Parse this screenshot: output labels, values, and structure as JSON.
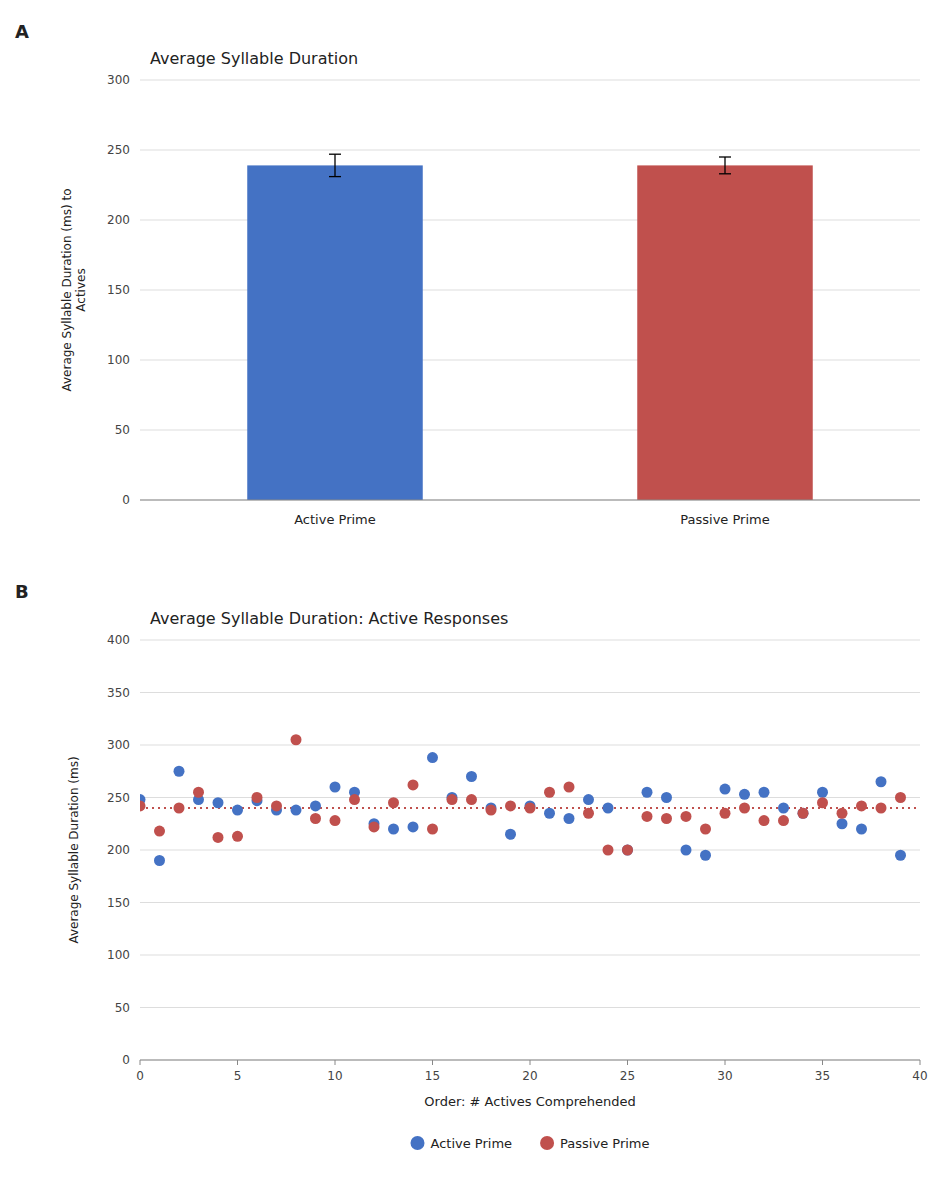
{
  "chart_data": [
    {
      "type": "bar",
      "panel_label": "A",
      "title": "Average Syllable Duration",
      "categories": [
        "Active Prime",
        "Passive Prime"
      ],
      "values": [
        239,
        239
      ],
      "errors": [
        8,
        6
      ],
      "colors": [
        "#4472C4",
        "#C0504D"
      ],
      "y_label": "Average Syllable Duration (ms) to\nActives",
      "ylim": [
        0,
        300
      ],
      "yticks": [
        0,
        50,
        100,
        150,
        200,
        250,
        300
      ],
      "grid": "y"
    },
    {
      "type": "scatter",
      "panel_label": "B",
      "title": "Average Syllable Duration: Active Responses",
      "x_label": "Order: # Actives Comprehended",
      "y_label": "Average Syllable Duration (ms)",
      "xlim": [
        0,
        40
      ],
      "ylim": [
        0,
        400
      ],
      "xticks": [
        0,
        5,
        10,
        15,
        20,
        25,
        30,
        35,
        40
      ],
      "yticks": [
        0,
        50,
        100,
        150,
        200,
        250,
        300,
        350,
        400
      ],
      "grid": "y",
      "legend": "bottom",
      "hline": {
        "value": 240,
        "color": "#C0504D",
        "line_style": "dotted"
      },
      "series": [
        {
          "name": "Active Prime",
          "color": "#4472C4",
          "x": [
            0,
            1,
            2,
            3,
            4,
            5,
            6,
            7,
            8,
            9,
            10,
            11,
            12,
            13,
            14,
            15,
            16,
            17,
            18,
            19,
            20,
            21,
            22,
            23,
            24,
            25,
            26,
            27,
            28,
            29,
            30,
            31,
            32,
            33,
            34,
            35,
            36,
            37,
            38,
            39
          ],
          "values": [
            248,
            190,
            275,
            248,
            245,
            238,
            247,
            238,
            238,
            242,
            260,
            255,
            225,
            220,
            222,
            288,
            250,
            270,
            240,
            215,
            242,
            235,
            230,
            248,
            240,
            200,
            255,
            250,
            200,
            195,
            258,
            253,
            255,
            240,
            235,
            255,
            225,
            220,
            265,
            195
          ]
        },
        {
          "name": "Passive Prime",
          "color": "#C0504D",
          "x": [
            0,
            1,
            2,
            3,
            4,
            5,
            6,
            7,
            8,
            9,
            10,
            11,
            12,
            13,
            14,
            15,
            16,
            17,
            18,
            19,
            20,
            21,
            22,
            23,
            24,
            25,
            26,
            27,
            28,
            29,
            30,
            31,
            32,
            33,
            34,
            35,
            36,
            37,
            38,
            39
          ],
          "values": [
            242,
            218,
            240,
            255,
            212,
            213,
            250,
            242,
            305,
            230,
            228,
            248,
            222,
            245,
            262,
            220,
            248,
            248,
            238,
            242,
            240,
            255,
            260,
            235,
            200,
            200,
            232,
            230,
            232,
            220,
            235,
            240,
            228,
            228,
            235,
            245,
            235,
            242,
            240,
            250
          ]
        }
      ]
    }
  ]
}
